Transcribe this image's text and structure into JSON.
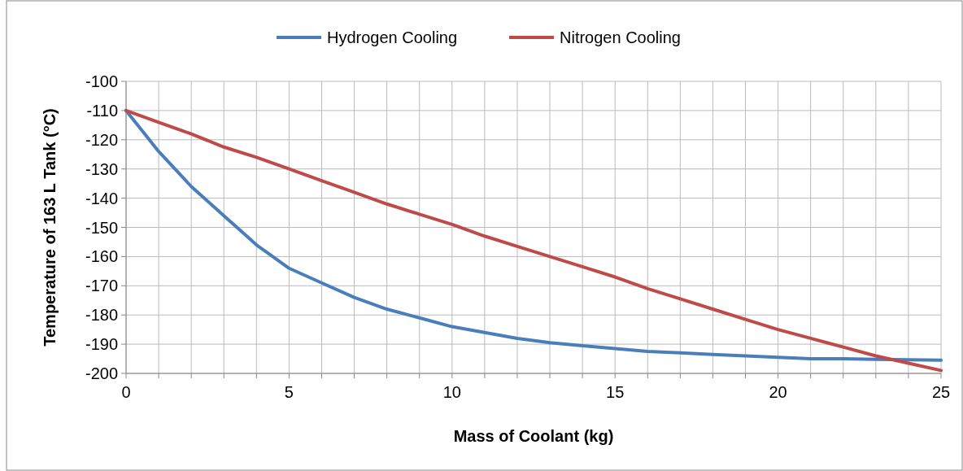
{
  "chart_data": {
    "type": "line",
    "xlabel": "Mass of Coolant (kg)",
    "ylabel": "Temperature of 163 L Tank (°C)",
    "legend": "top",
    "grid": true,
    "marker": "none",
    "line_style": "solid",
    "xlim": [
      0,
      25
    ],
    "ylim": [
      -200,
      -100
    ],
    "xticks": [
      0,
      {
        "value": 1,
        "label": null
      },
      {
        "value": 2,
        "label": null
      },
      {
        "value": 3,
        "label": null
      },
      {
        "value": 4,
        "label": null
      },
      5,
      {
        "value": 6,
        "label": null
      },
      {
        "value": 7,
        "label": null
      },
      {
        "value": 8,
        "label": null
      },
      {
        "value": 9,
        "label": null
      },
      10,
      {
        "value": 11,
        "label": null
      },
      {
        "value": 12,
        "label": null
      },
      {
        "value": 13,
        "label": null
      },
      {
        "value": 14,
        "label": null
      },
      15,
      {
        "value": 16,
        "label": null
      },
      {
        "value": 17,
        "label": null
      },
      {
        "value": 18,
        "label": null
      },
      {
        "value": 19,
        "label": null
      },
      20,
      {
        "value": 21,
        "label": null
      },
      {
        "value": 22,
        "label": null
      },
      {
        "value": 23,
        "label": null
      },
      {
        "value": 24,
        "label": null
      },
      25
    ],
    "yticks": [
      -200,
      -190,
      -180,
      -170,
      -160,
      -150,
      -140,
      -130,
      -120,
      -110,
      -100
    ],
    "series": [
      {
        "name": "Hydrogen Cooling",
        "color": "#4a7ebb",
        "x": [
          0,
          0.5,
          1,
          1.5,
          2,
          2.5,
          3,
          3.5,
          4,
          4.5,
          5,
          6,
          7,
          8,
          9,
          10,
          11,
          12,
          13,
          14,
          15,
          16,
          17,
          18,
          19,
          20,
          21,
          22,
          23,
          24,
          25
        ],
        "values": [
          -110,
          -117,
          -124,
          -130,
          -136,
          -141,
          -146,
          -151,
          -156,
          -160,
          -164,
          -169,
          -174,
          -178,
          -181,
          -184,
          -186,
          -188,
          -189.5,
          -190.5,
          -191.5,
          -192.5,
          -193,
          -193.5,
          -194,
          -194.5,
          -195,
          -195,
          -195.2,
          -195.3,
          -195.5
        ]
      },
      {
        "name": "Nitrogen Cooling",
        "color": "#be4b48",
        "x": [
          0,
          1,
          2,
          3,
          4,
          5,
          6,
          7,
          8,
          9,
          10,
          11,
          12,
          13,
          14,
          15,
          16,
          17,
          18,
          19,
          20,
          21,
          22,
          23,
          24,
          25
        ],
        "values": [
          -110,
          -114,
          -118,
          -122.5,
          -126,
          -130,
          -134,
          -138,
          -142,
          -145.5,
          -149,
          -153,
          -156.5,
          -160,
          -163.5,
          -167,
          -171,
          -174.5,
          -178,
          -181.5,
          -185,
          -188,
          -191,
          -194,
          -196.5,
          -199
        ]
      }
    ]
  }
}
